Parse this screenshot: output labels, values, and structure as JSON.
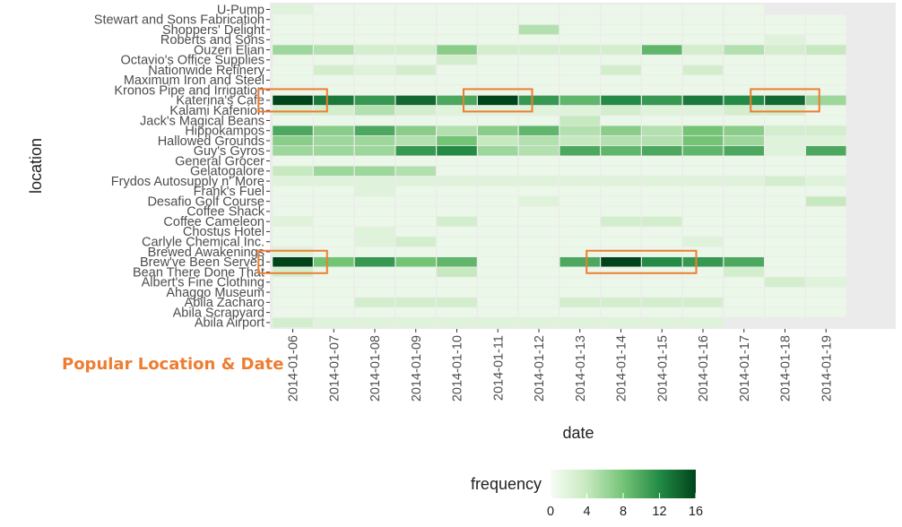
{
  "annotation": {
    "text": "Popular Location & Date",
    "color": "#ED7D31"
  },
  "chart_data": {
    "type": "heatmap",
    "xlabel": "date",
    "ylabel": "location",
    "x": [
      "2014-01-06",
      "2014-01-07",
      "2014-01-08",
      "2014-01-09",
      "2014-01-10",
      "2014-01-11",
      "2014-01-12",
      "2014-01-13",
      "2014-01-14",
      "2014-01-15",
      "2014-01-16",
      "2014-01-17",
      "2014-01-18",
      "2014-01-19"
    ],
    "y": [
      "U-Pump",
      "Stewart and Sons Fabrication",
      "Shoppers' Delight",
      "Roberts and Sons",
      "Ouzeri Elian",
      "Octavio's Office Supplies",
      "Nationwide Refinery",
      "Maximum Iron and Steel",
      "Kronos Pipe and Irrigation",
      "Katerina's Cafe",
      "Kalami Kafenion",
      "Jack's Magical Beans",
      "Hippokampos",
      "Hallowed Grounds",
      "Guy's Gyros",
      "General Grocer",
      "Gelatogalore",
      "Frydos Autosupply n' More",
      "Frank's Fuel",
      "Desafio Golf Course",
      "Coffee Shack",
      "Coffee Cameleon",
      "Chostus Hotel",
      "Carlyle Chemical Inc.",
      "Brewed Awakenings",
      "Brew've Been Served",
      "Bean There Done That",
      "Albert's Fine Clothing",
      "Ahaggo Museum",
      "Abila Zacharo",
      "Abila Scrapyard",
      "Abila Airport"
    ],
    "values": [
      [
        2,
        1,
        1,
        1,
        1,
        1,
        1,
        1,
        1,
        1,
        1,
        1,
        null,
        null
      ],
      [
        1,
        1,
        1,
        1,
        1,
        1,
        1,
        1,
        1,
        1,
        1,
        1,
        1,
        1
      ],
      [
        1,
        1,
        1,
        1,
        1,
        1,
        5,
        1,
        1,
        1,
        1,
        1,
        1,
        1
      ],
      [
        1,
        1,
        1,
        1,
        1,
        1,
        1,
        1,
        1,
        1,
        1,
        1,
        2,
        1
      ],
      [
        6,
        5,
        3,
        3,
        7,
        3,
        3,
        3,
        3,
        9,
        3,
        5,
        3,
        4
      ],
      [
        1,
        1,
        1,
        1,
        3,
        1,
        1,
        1,
        1,
        1,
        1,
        1,
        1,
        1
      ],
      [
        1,
        3,
        2,
        3,
        1,
        1,
        1,
        1,
        3,
        1,
        3,
        1,
        1,
        1
      ],
      [
        1,
        1,
        1,
        1,
        1,
        1,
        1,
        1,
        1,
        1,
        1,
        1,
        1,
        1
      ],
      [
        1,
        1,
        1,
        1,
        1,
        1,
        1,
        1,
        1,
        1,
        1,
        1,
        1,
        1
      ],
      [
        16,
        13,
        11,
        14,
        10,
        16,
        11,
        9,
        12,
        11,
        13,
        12,
        14,
        6
      ],
      [
        3,
        3,
        5,
        3,
        2,
        2,
        2,
        2,
        3,
        2,
        2,
        3,
        3,
        1
      ],
      [
        1,
        1,
        1,
        1,
        1,
        1,
        1,
        4,
        1,
        1,
        1,
        1,
        1,
        1
      ],
      [
        10,
        7,
        10,
        7,
        5,
        7,
        9,
        5,
        7,
        5,
        8,
        7,
        3,
        3
      ],
      [
        7,
        6,
        6,
        5,
        8,
        4,
        5,
        4,
        5,
        5,
        8,
        6,
        2,
        2
      ],
      [
        6,
        6,
        6,
        11,
        12,
        6,
        5,
        10,
        9,
        10,
        9,
        10,
        2,
        10
      ],
      [
        1,
        1,
        1,
        1,
        1,
        1,
        1,
        1,
        1,
        1,
        1,
        1,
        1,
        1
      ],
      [
        4,
        6,
        6,
        5,
        1,
        1,
        1,
        1,
        1,
        1,
        1,
        1,
        1,
        1
      ],
      [
        2,
        2,
        2,
        2,
        2,
        2,
        2,
        2,
        2,
        2,
        2,
        2,
        3,
        2
      ],
      [
        1,
        1,
        2,
        1,
        1,
        1,
        1,
        1,
        1,
        1,
        1,
        1,
        1,
        1
      ],
      [
        1,
        1,
        1,
        1,
        1,
        1,
        2,
        1,
        1,
        1,
        1,
        1,
        1,
        4
      ],
      [
        1,
        1,
        1,
        1,
        1,
        1,
        1,
        1,
        1,
        1,
        1,
        1,
        1,
        1
      ],
      [
        2,
        1,
        1,
        1,
        3,
        1,
        1,
        1,
        3,
        3,
        1,
        1,
        1,
        1
      ],
      [
        1,
        1,
        2,
        1,
        1,
        1,
        1,
        1,
        1,
        1,
        1,
        1,
        1,
        1
      ],
      [
        1,
        1,
        2,
        3,
        1,
        1,
        1,
        1,
        1,
        1,
        2,
        1,
        1,
        1
      ],
      [
        2,
        1,
        1,
        1,
        1,
        1,
        1,
        1,
        1,
        1,
        1,
        1,
        1,
        1
      ],
      [
        16,
        8,
        11,
        8,
        9,
        1,
        1,
        10,
        16,
        12,
        11,
        10,
        1,
        1
      ],
      [
        3,
        1,
        1,
        1,
        4,
        1,
        1,
        1,
        1,
        1,
        1,
        3,
        1,
        1
      ],
      [
        1,
        1,
        1,
        1,
        1,
        1,
        1,
        1,
        1,
        1,
        1,
        1,
        3,
        2
      ],
      [
        1,
        1,
        1,
        1,
        1,
        1,
        1,
        1,
        1,
        1,
        1,
        1,
        1,
        1
      ],
      [
        1,
        1,
        3,
        3,
        3,
        1,
        1,
        3,
        3,
        3,
        3,
        1,
        1,
        1
      ],
      [
        1,
        1,
        1,
        1,
        1,
        1,
        1,
        1,
        1,
        1,
        1,
        1,
        1,
        1
      ],
      [
        3,
        2,
        2,
        2,
        2,
        2,
        2,
        2,
        2,
        2,
        2,
        null,
        null,
        null
      ]
    ],
    "legend": {
      "title": "frequency",
      "ticks": [
        0,
        4,
        8,
        12,
        16
      ],
      "range": [
        0,
        16
      ],
      "colors": [
        "#F7FCF5",
        "#C7E9C0",
        "#74C476",
        "#238B45",
        "#00441B"
      ],
      "placement": "bottom"
    },
    "highlights": [
      {
        "x": "2014-01-06",
        "y": "Katerina's Cafe"
      },
      {
        "x": "2014-01-11",
        "y": "Katerina's Cafe"
      },
      {
        "x": "2014-01-18",
        "y": "Katerina's Cafe"
      },
      {
        "x": "2014-01-06",
        "y": "Brew've Been Served"
      },
      {
        "x": [
          "2014-01-14",
          "2014-01-15"
        ],
        "y": "Brew've Been Served"
      }
    ],
    "highlight_color": "#ED7D31",
    "panel_color": "#EBEBEB",
    "grid": true
  }
}
